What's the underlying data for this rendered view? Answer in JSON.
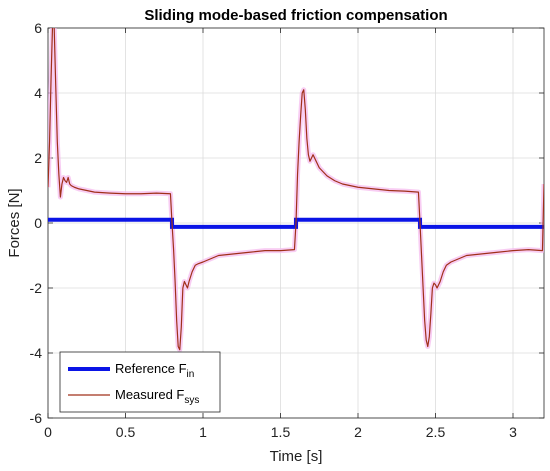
{
  "chart_data": {
    "type": "line",
    "title": "Sliding mode-based friction compensation",
    "xlabel": "Time [s]",
    "ylabel": "Forces [N]",
    "xlim": [
      0,
      3.2
    ],
    "ylim": [
      -6,
      6
    ],
    "xticks": [
      0,
      0.5,
      1,
      1.5,
      2,
      2.5,
      3
    ],
    "xtick_labels": [
      "0",
      "0.5",
      "1",
      "1.5",
      "2",
      "2.5",
      "3"
    ],
    "yticks": [
      -6,
      -4,
      -2,
      0,
      2,
      4,
      6
    ],
    "ytick_labels": [
      "-6",
      "-4",
      "-2",
      "0",
      "2",
      "4",
      "6"
    ],
    "grid": true,
    "legend_position": "bottom-left",
    "colors": {
      "reference": "#0a14e6",
      "measured": "#a0301a",
      "measured_glow": "#f5b8ee",
      "grid": "#dcdcdc",
      "axes": "#262626"
    },
    "series": [
      {
        "name": "Reference F",
        "subscript": "in",
        "style": "thick",
        "x": [
          0,
          0.8,
          0.8,
          1.6,
          1.6,
          2.4,
          2.4,
          3.2
        ],
        "y": [
          0.1,
          0.1,
          -0.12,
          -0.12,
          0.1,
          0.1,
          -0.12,
          -0.12
        ]
      },
      {
        "name": "Measured F",
        "subscript": "sys",
        "style": "thin",
        "x": [
          0,
          0.01,
          0.02,
          0.03,
          0.04,
          0.05,
          0.06,
          0.07,
          0.08,
          0.09,
          0.1,
          0.11,
          0.12,
          0.13,
          0.14,
          0.15,
          0.17,
          0.2,
          0.25,
          0.3,
          0.4,
          0.5,
          0.6,
          0.7,
          0.79,
          0.8,
          0.81,
          0.82,
          0.83,
          0.84,
          0.85,
          0.86,
          0.87,
          0.88,
          0.89,
          0.9,
          0.91,
          0.93,
          0.95,
          0.97,
          1.0,
          1.05,
          1.1,
          1.2,
          1.3,
          1.4,
          1.5,
          1.59,
          1.6,
          1.61,
          1.62,
          1.63,
          1.64,
          1.65,
          1.66,
          1.67,
          1.68,
          1.69,
          1.7,
          1.71,
          1.73,
          1.75,
          1.77,
          1.8,
          1.85,
          1.9,
          2.0,
          2.1,
          2.2,
          2.3,
          2.39,
          2.4,
          2.41,
          2.42,
          2.43,
          2.44,
          2.45,
          2.46,
          2.47,
          2.48,
          2.49,
          2.5,
          2.51,
          2.53,
          2.55,
          2.57,
          2.6,
          2.65,
          2.7,
          2.8,
          2.9,
          3.0,
          3.1,
          3.19,
          3.2
        ],
        "y": [
          1.1,
          2.5,
          4.5,
          6.2,
          6.0,
          4.2,
          2.5,
          1.5,
          0.8,
          1.2,
          1.4,
          1.3,
          1.25,
          1.4,
          1.2,
          1.15,
          1.1,
          1.05,
          1.0,
          0.95,
          0.92,
          0.9,
          0.9,
          0.92,
          0.9,
          0.0,
          -0.8,
          -1.8,
          -3.0,
          -3.8,
          -3.9,
          -3.2,
          -2.0,
          -1.8,
          -1.9,
          -2.0,
          -1.8,
          -1.5,
          -1.3,
          -1.25,
          -1.2,
          -1.1,
          -1.0,
          -0.95,
          -0.9,
          -0.85,
          -0.85,
          -0.82,
          0.0,
          1.5,
          2.5,
          3.3,
          4.0,
          4.1,
          3.5,
          2.6,
          2.1,
          1.9,
          2.0,
          2.1,
          1.9,
          1.7,
          1.6,
          1.45,
          1.3,
          1.2,
          1.1,
          1.05,
          1.0,
          0.98,
          0.95,
          0.0,
          -1.0,
          -2.0,
          -3.0,
          -3.6,
          -3.8,
          -3.5,
          -2.8,
          -2.0,
          -1.85,
          -1.9,
          -2.0,
          -1.8,
          -1.5,
          -1.3,
          -1.2,
          -1.1,
          -1.0,
          -0.95,
          -0.9,
          -0.85,
          -0.82,
          -0.85,
          1.2
        ]
      }
    ]
  }
}
